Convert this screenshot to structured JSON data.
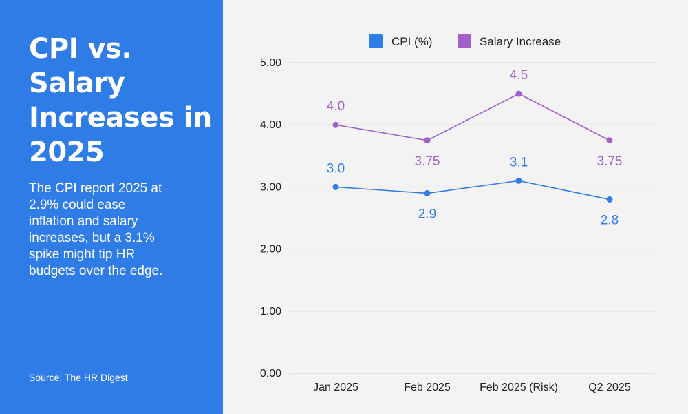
{
  "sidebar": {
    "title": "CPI vs. Salary Increases in 2025",
    "description": "The CPI report 2025 at 2.9% could ease inflation and salary increases, but a 3.1% spike might tip HR budgets over the edge.",
    "source": "Source: The HR Digest",
    "background_color": "#2f7ce6"
  },
  "chart_data": {
    "type": "line",
    "title": "",
    "xlabel": "",
    "ylabel": "",
    "categories": [
      "Jan 2025",
      "Feb 2025",
      "Feb 2025 (Risk)",
      "Q2 2025"
    ],
    "series": [
      {
        "name": "CPI (%)",
        "values": [
          3.0,
          2.9,
          3.1,
          2.8
        ],
        "labels": [
          "3.0",
          "2.9",
          "3.1",
          "2.8"
        ],
        "label_positions": [
          "above",
          "below",
          "above",
          "below"
        ],
        "color": "#2f7ce6"
      },
      {
        "name": "Salary Increase",
        "values": [
          4.0,
          3.75,
          4.5,
          3.75
        ],
        "labels": [
          "4.0",
          "3.75",
          "4.5",
          "3.75"
        ],
        "label_positions": [
          "above",
          "below",
          "above",
          "below"
        ],
        "color": "#a260c9"
      }
    ],
    "ylim": [
      0,
      5
    ],
    "yticks": [
      "0.00",
      "1.00",
      "2.00",
      "3.00",
      "4.00",
      "5.00"
    ],
    "grid": true,
    "legend": "top-center"
  }
}
